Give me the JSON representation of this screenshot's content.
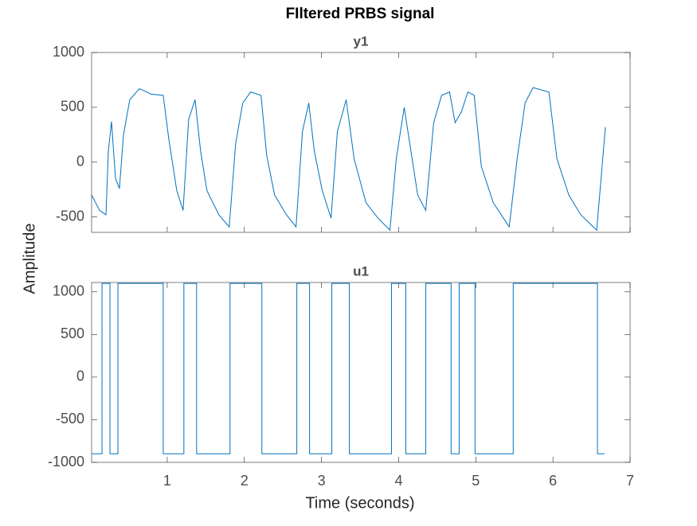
{
  "title": "FIltered PRBS signal",
  "xlabel": "Time (seconds)",
  "ylabel": "Amplitude",
  "chart_data": [
    {
      "type": "line",
      "title": "y1",
      "color": "#0072bd",
      "xlim": [
        0.02,
        7
      ],
      "xticks": [
        1,
        2,
        3,
        4,
        5,
        6,
        7
      ],
      "ylim": [
        -640,
        1000
      ],
      "yticks": [
        -500,
        0,
        500,
        1000
      ],
      "x": [
        0.02,
        0.124,
        0.206,
        0.237,
        0.278,
        0.33,
        0.381,
        0.433,
        0.515,
        0.639,
        0.794,
        0.948,
        1.021,
        1.124,
        1.206,
        1.278,
        1.361,
        1.433,
        1.515,
        1.67,
        1.804,
        1.887,
        1.979,
        2.082,
        2.216,
        2.289,
        2.392,
        2.546,
        2.67,
        2.753,
        2.835,
        2.907,
        3.01,
        3.124,
        3.206,
        3.32,
        3.423,
        3.577,
        3.732,
        3.887,
        3.969,
        4.072,
        4.144,
        4.247,
        4.351,
        4.454,
        4.557,
        4.66,
        4.732,
        4.814,
        4.897,
        4.979,
        5.072,
        5.227,
        5.433,
        5.536,
        5.639,
        5.742,
        5.948,
        6.052,
        6.206,
        6.361,
        6.567,
        6.619,
        6.68
      ],
      "values": [
        -300,
        -440,
        -480,
        100,
        370,
        -150,
        -240,
        250,
        570,
        670,
        620,
        610,
        210,
        -260,
        -440,
        390,
        570,
        100,
        -260,
        -480,
        -590,
        170,
        540,
        640,
        610,
        65,
        -300,
        -480,
        -590,
        280,
        540,
        100,
        -260,
        -510,
        280,
        570,
        30,
        -370,
        -510,
        -620,
        30,
        500,
        170,
        -300,
        -440,
        360,
        610,
        640,
        360,
        460,
        640,
        610,
        -40,
        -370,
        -590,
        30,
        540,
        680,
        640,
        30,
        -300,
        -480,
        -620,
        -190,
        320
      ]
    },
    {
      "type": "line",
      "title": "u1",
      "color": "#0072bd",
      "xlim": [
        0.02,
        7
      ],
      "xticks": [
        1,
        2,
        3,
        4,
        5,
        6,
        7
      ],
      "ylim": [
        -1000,
        1110
      ],
      "yticks": [
        -1000,
        -500,
        0,
        500,
        1000
      ],
      "x": [
        0.02,
        0.155,
        0.155,
        0.258,
        0.258,
        0.361,
        0.361,
        0.948,
        0.948,
        1.216,
        1.216,
        1.381,
        1.381,
        1.814,
        1.814,
        2.227,
        2.227,
        2.68,
        2.68,
        2.845,
        2.845,
        3.134,
        3.134,
        3.361,
        3.361,
        3.907,
        3.907,
        4.093,
        4.093,
        4.351,
        4.351,
        4.68,
        4.68,
        4.784,
        4.784,
        4.99,
        4.99,
        5.485,
        5.485,
        6.577,
        6.577,
        6.67
      ],
      "values": [
        -900,
        -900,
        1100,
        1100,
        -900,
        -900,
        1100,
        1100,
        -900,
        -900,
        1100,
        1100,
        -900,
        -900,
        1100,
        1100,
        -900,
        -900,
        1100,
        1100,
        -900,
        -900,
        1100,
        1100,
        -900,
        -900,
        1100,
        1100,
        -900,
        -900,
        1100,
        1100,
        -900,
        -900,
        1100,
        1100,
        -900,
        -900,
        1100,
        1100,
        -900,
        -900
      ]
    }
  ]
}
